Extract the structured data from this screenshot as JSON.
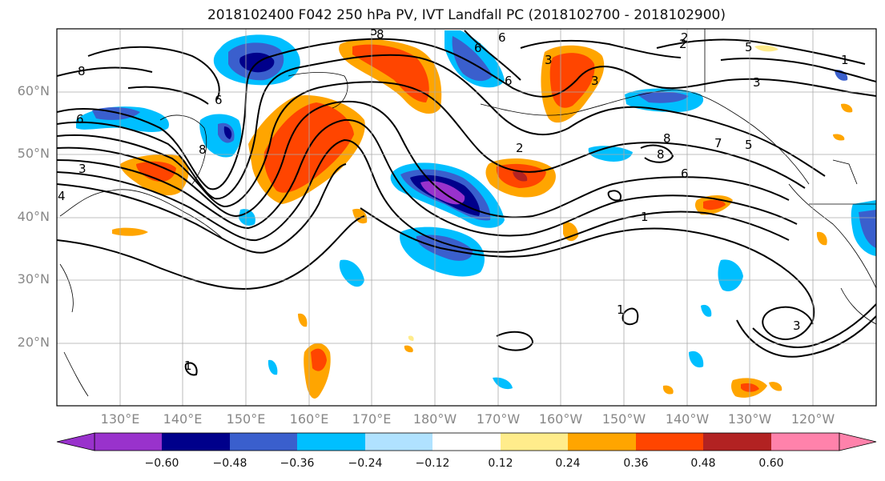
{
  "title": "2018102400 F042 250 hPa PV, IVT Landfall PC (2018102700 - 2018102900)",
  "lat_labels": [
    "60°N",
    "50°N",
    "40°N",
    "30°N",
    "20°N"
  ],
  "lon_labels": [
    "130°E",
    "140°E",
    "150°E",
    "160°E",
    "170°E",
    "180°W",
    "170°W",
    "160°W",
    "150°W",
    "140°W",
    "130°W",
    "120°W"
  ],
  "colorbar": {
    "ticks": [
      "−0.60",
      "−0.48",
      "−0.36",
      "−0.24",
      "−0.12",
      "0.12",
      "0.24",
      "0.36",
      "0.48",
      "0.60"
    ],
    "colors": [
      "#9932cc",
      "#00008b",
      "#3a5fcd",
      "#00bfff",
      "#b0e2ff",
      "#ffffff",
      "#ffec8b",
      "#ffa500",
      "#ff4500",
      "#b22222",
      "#ff82ab"
    ]
  },
  "contour_labels": [
    "8",
    "6",
    "3",
    "4",
    "8",
    "6",
    "5",
    "6",
    "6",
    "2",
    "5",
    "1",
    "3",
    "3",
    "2",
    "8",
    "7",
    "6",
    "5",
    "8",
    "6",
    "3",
    "2",
    "8",
    "1",
    "1",
    "3",
    "1"
  ],
  "map": {
    "projection": "cylindrical",
    "lon_range": [
      "120°E",
      "110°W"
    ],
    "lat_range": [
      "10°N",
      "70°N"
    ],
    "grid": true,
    "contours": "black 250 hPa PV contours",
    "shading": "IVT landfall PC regression"
  }
}
